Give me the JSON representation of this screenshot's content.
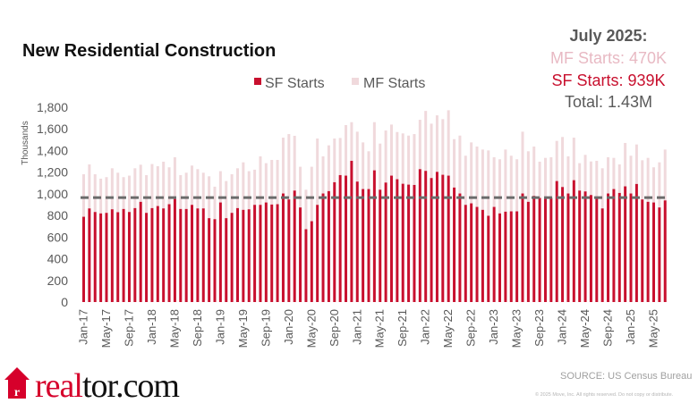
{
  "colors": {
    "sf": "#c8102e",
    "mf": "#f0d9dc",
    "reference_line": "#6b6b6b",
    "brand_red": "#d6002b"
  },
  "header": {
    "title": "New Residential Construction",
    "callout": {
      "heading": "July 2025:",
      "mf": "MF Starts: 470K",
      "sf": "SF Starts:  939K",
      "total": "Total:  1.43M"
    }
  },
  "footer": {
    "logo_text_red": "real",
    "logo_text_black": "tor.com",
    "source": "SOURCE: US Census Bureau",
    "copyright": "© 2025 Move, Inc. All rights reserved. Do not copy or distribute."
  },
  "chart_data": {
    "type": "bar",
    "stacked": true,
    "title": "New Residential Construction",
    "ylabel": "Thousands",
    "xlabel": "",
    "ylim": [
      0,
      1800
    ],
    "yticks": [
      "0",
      "200",
      "400",
      "600",
      "800",
      "1,000",
      "1,200",
      "1,400",
      "1,600",
      "1,800"
    ],
    "grid": false,
    "legend": {
      "position": "top",
      "entries": [
        "SF Starts",
        "MF Starts"
      ]
    },
    "xtick_labels": [
      "Jan-17",
      "May-17",
      "Sep-17",
      "Jan-18",
      "May-18",
      "Sep-18",
      "Jan-19",
      "May-19",
      "Sep-19",
      "Jan-20",
      "May-20",
      "Sep-20",
      "Jan-21",
      "May-21",
      "Sep-21",
      "Jan-22",
      "May-22",
      "Sep-22",
      "Jan-23",
      "May-23",
      "Sep-23",
      "Jan-24",
      "May-24",
      "Sep-24",
      "Jan-25",
      "May-25"
    ],
    "x_start": "Jan-17",
    "x_end": "Jul-25",
    "reference_line_value": 965,
    "series": [
      {
        "name": "SF Starts",
        "values": [
          788,
          865,
          832,
          819,
          824,
          857,
          830,
          860,
          832,
          868,
          926,
          824,
          868,
          887,
          865,
          904,
          953,
          860,
          860,
          898,
          865,
          865,
          775,
          766,
          920,
          775,
          824,
          868,
          852,
          857,
          898,
          898,
          920,
          901,
          904,
          1003,
          948,
          1030,
          874,
          673,
          747,
          898,
          1003,
          1025,
          1107,
          1173,
          1168,
          1305,
          1113,
          1044,
          1044,
          1217,
          1038,
          1104,
          1168,
          1135,
          1093,
          1085,
          1082,
          1228,
          1212,
          1146,
          1203,
          1176,
          1168,
          1058,
          1003,
          898,
          912,
          879,
          852,
          797,
          879,
          819,
          835,
          838,
          838,
          1003,
          926,
          981,
          962,
          962,
          962,
          1118,
          1063,
          1003,
          1126,
          1030,
          1022,
          989,
          975,
          865,
          1003,
          1044,
          1008,
          1069,
          1003,
          1091,
          948,
          926,
          920,
          874,
          939
        ]
      },
      {
        "name": "MF Starts",
        "values": [
          393,
          407,
          349,
          321,
          330,
          379,
          365,
          294,
          336,
          368,
          343,
          349,
          407,
          368,
          432,
          341,
          385,
          313,
          335,
          363,
          363,
          330,
          387,
          300,
          289,
          343,
          357,
          368,
          439,
          352,
          325,
          448,
          363,
          412,
          409,
          516,
          604,
          506,
          376,
          365,
          503,
          613,
          343,
          423,
          404,
          343,
          467,
          357,
          461,
          431,
          349,
          445,
          426,
          481,
          472,
          436,
          465,
          453,
          470,
          456,
          554,
          502,
          522,
          514,
          604,
          447,
          535,
          454,
          563,
          558,
          557,
          604,
          459,
          500,
          574,
          514,
          481,
          571,
          467,
          456,
          335,
          370,
          376,
          371,
          462,
          343,
          393,
          253,
          338,
          310,
          330,
          371,
          335,
          288,
          264,
          401,
          349,
          365,
          362,
          406,
          325,
          417,
          470
        ]
      }
    ]
  }
}
